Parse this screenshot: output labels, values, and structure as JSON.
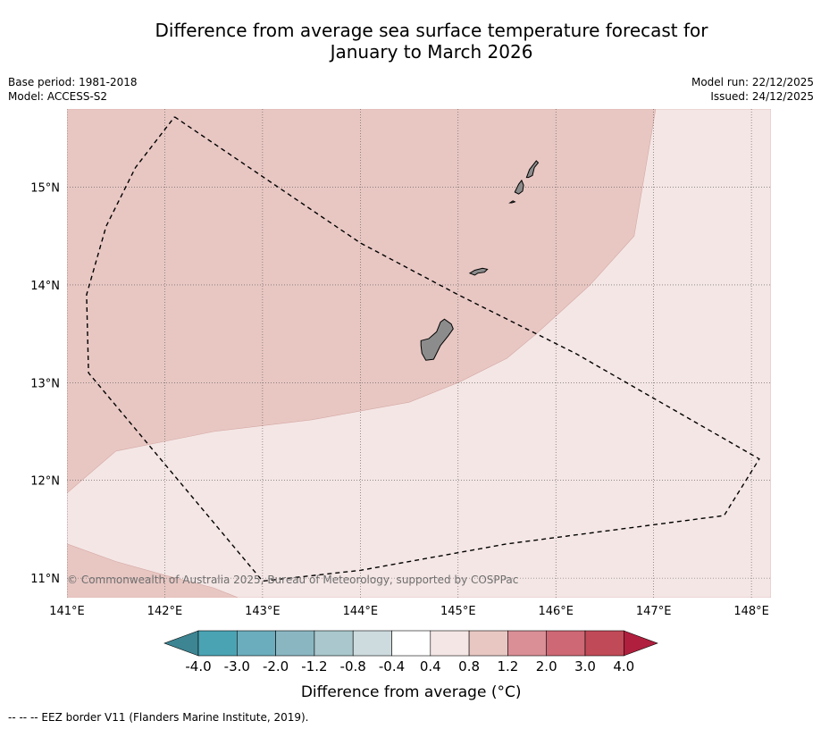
{
  "title": {
    "line1": "Difference from average sea surface temperature forecast for",
    "line2": "January to March 2026"
  },
  "meta": {
    "base_period": "Base period: 1981-2018",
    "model": "Model: ACCESS-S2",
    "model_run": "Model run: 22/12/2025",
    "issued": "Issued: 24/12/2025"
  },
  "map": {
    "lon_range": [
      141,
      148.2
    ],
    "lat_range": [
      10.8,
      15.8
    ],
    "lon_ticks": [
      {
        "value": 141,
        "label": "141°E"
      },
      {
        "value": 142,
        "label": "142°E"
      },
      {
        "value": 143,
        "label": "143°E"
      },
      {
        "value": 144,
        "label": "144°E"
      },
      {
        "value": 145,
        "label": "145°E"
      },
      {
        "value": 146,
        "label": "146°E"
      },
      {
        "value": 147,
        "label": "147°E"
      },
      {
        "value": 148,
        "label": "148°E"
      }
    ],
    "lat_ticks": [
      {
        "value": 15,
        "label": "15°N"
      },
      {
        "value": 14,
        "label": "14°N"
      },
      {
        "value": 13,
        "label": "13°N"
      },
      {
        "value": 12,
        "label": "12°N"
      },
      {
        "value": 11,
        "label": "11°N"
      }
    ],
    "regions": [
      {
        "name": "anomaly-0.4-0.8-region",
        "color": "#f4e6e5",
        "points": [
          [
            141,
            15.8
          ],
          [
            148.2,
            15.8
          ],
          [
            148.2,
            10.8
          ],
          [
            141,
            10.8
          ]
        ]
      },
      {
        "name": "anomaly-0.8-1.2-region-north",
        "color": "#e8c7c3",
        "points": [
          [
            141,
            15.8
          ],
          [
            147.02,
            15.8
          ],
          [
            146.8,
            14.5
          ],
          [
            146.35,
            14.0
          ],
          [
            145.8,
            13.5
          ],
          [
            145.5,
            13.25
          ],
          [
            145.0,
            13.0
          ],
          [
            144.5,
            12.8
          ],
          [
            143.5,
            12.62
          ],
          [
            142.5,
            12.5
          ],
          [
            142.0,
            12.4
          ],
          [
            141.5,
            12.3
          ],
          [
            141.0,
            11.87
          ]
        ]
      },
      {
        "name": "anomaly-0.8-1.2-region-south",
        "color": "#e8c7c3",
        "points": [
          [
            141,
            11.35
          ],
          [
            141.5,
            11.17
          ],
          [
            142.0,
            11.03
          ],
          [
            142.5,
            10.9
          ],
          [
            142.75,
            10.8
          ],
          [
            141,
            10.8
          ]
        ]
      }
    ],
    "islands": [
      {
        "name": "guam-island",
        "points": [
          [
            144.62,
            13.43
          ],
          [
            144.7,
            13.45
          ],
          [
            144.78,
            13.52
          ],
          [
            144.82,
            13.62
          ],
          [
            144.86,
            13.65
          ],
          [
            144.93,
            13.6
          ],
          [
            144.95,
            13.55
          ],
          [
            144.9,
            13.48
          ],
          [
            144.82,
            13.38
          ],
          [
            144.78,
            13.3
          ],
          [
            144.75,
            13.24
          ],
          [
            144.67,
            13.23
          ],
          [
            144.63,
            13.3
          ],
          [
            144.62,
            13.38
          ]
        ]
      },
      {
        "name": "rota-island",
        "points": [
          [
            145.12,
            14.12
          ],
          [
            145.17,
            14.15
          ],
          [
            145.25,
            14.17
          ],
          [
            145.3,
            14.16
          ],
          [
            145.27,
            14.13
          ],
          [
            145.2,
            14.12
          ],
          [
            145.17,
            14.1
          ]
        ]
      },
      {
        "name": "tinian-island",
        "points": [
          [
            145.58,
            14.95
          ],
          [
            145.62,
            15.03
          ],
          [
            145.65,
            15.07
          ],
          [
            145.67,
            15.02
          ],
          [
            145.66,
            14.96
          ],
          [
            145.62,
            14.93
          ]
        ]
      },
      {
        "name": "saipan-island",
        "points": [
          [
            145.7,
            15.1
          ],
          [
            145.73,
            15.18
          ],
          [
            145.8,
            15.27
          ],
          [
            145.82,
            15.25
          ],
          [
            145.78,
            15.2
          ],
          [
            145.76,
            15.12
          ],
          [
            145.72,
            15.1
          ]
        ]
      },
      {
        "name": "aguijan-island",
        "points": [
          [
            145.53,
            14.84
          ],
          [
            145.56,
            14.86
          ],
          [
            145.58,
            14.85
          ],
          [
            145.55,
            14.84
          ]
        ]
      }
    ],
    "eez_border": [
      [
        142.1,
        15.72
      ],
      [
        144.0,
        14.43
      ],
      [
        145.0,
        13.9
      ],
      [
        146.2,
        13.3
      ],
      [
        148.08,
        12.22
      ],
      [
        147.72,
        11.64
      ],
      [
        145.5,
        11.35
      ],
      [
        144.0,
        11.08
      ],
      [
        143.0,
        10.97
      ],
      [
        141.22,
        13.1
      ],
      [
        141.2,
        13.9
      ],
      [
        141.4,
        14.6
      ],
      [
        141.7,
        15.2
      ],
      [
        142.1,
        15.72
      ]
    ]
  },
  "copyright": "© Commonwealth of Australia 2025, Bureau of Meteorology, supported by COSPPac",
  "colorbar": {
    "low_arrow_color": "#3d8592",
    "high_arrow_color": "#b01f3e",
    "colors": [
      "#4aa3b3",
      "#6badbc",
      "#8ab6c2",
      "#a9c7cc",
      "#cddbdf",
      "#ffffff",
      "#f4e6e5",
      "#e8c7c3",
      "#da8e96",
      "#cd6874",
      "#c14a58"
    ],
    "ticks": [
      "-4.0",
      "-3.0",
      "-2.0",
      "-1.2",
      "-0.8",
      "-0.4",
      "0.4",
      "0.8",
      "1.2",
      "2.0",
      "3.0",
      "4.0"
    ],
    "label": "Difference from average (°C)"
  },
  "footer": "--  --  -- EEZ border V11 (Flanders Marine Institute, 2019)."
}
